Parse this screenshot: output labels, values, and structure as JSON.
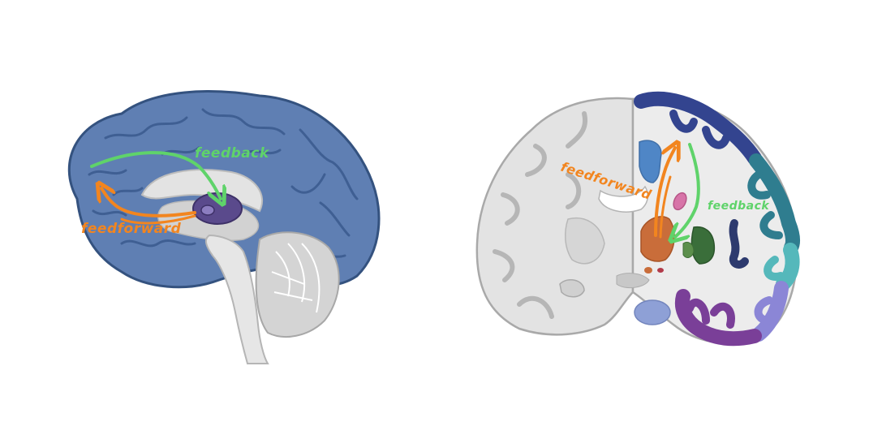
{
  "labels": {
    "sagittal_feedback": "feedback",
    "sagittal_feedforward": "feedforward",
    "coronal_feedforward": "feedforward",
    "coronal_feedback": "feedback"
  },
  "colors": {
    "feedback": "#5fd36a",
    "feedforward": "#f2851f",
    "cortex": "#5f7fb3",
    "cortex_dark": "#3f5f93",
    "thalamus": "#5a4a8c",
    "gray_light": "#e3e3e3",
    "gray_mid": "#c8c8c8",
    "gray_dark": "#9a9a9a"
  }
}
